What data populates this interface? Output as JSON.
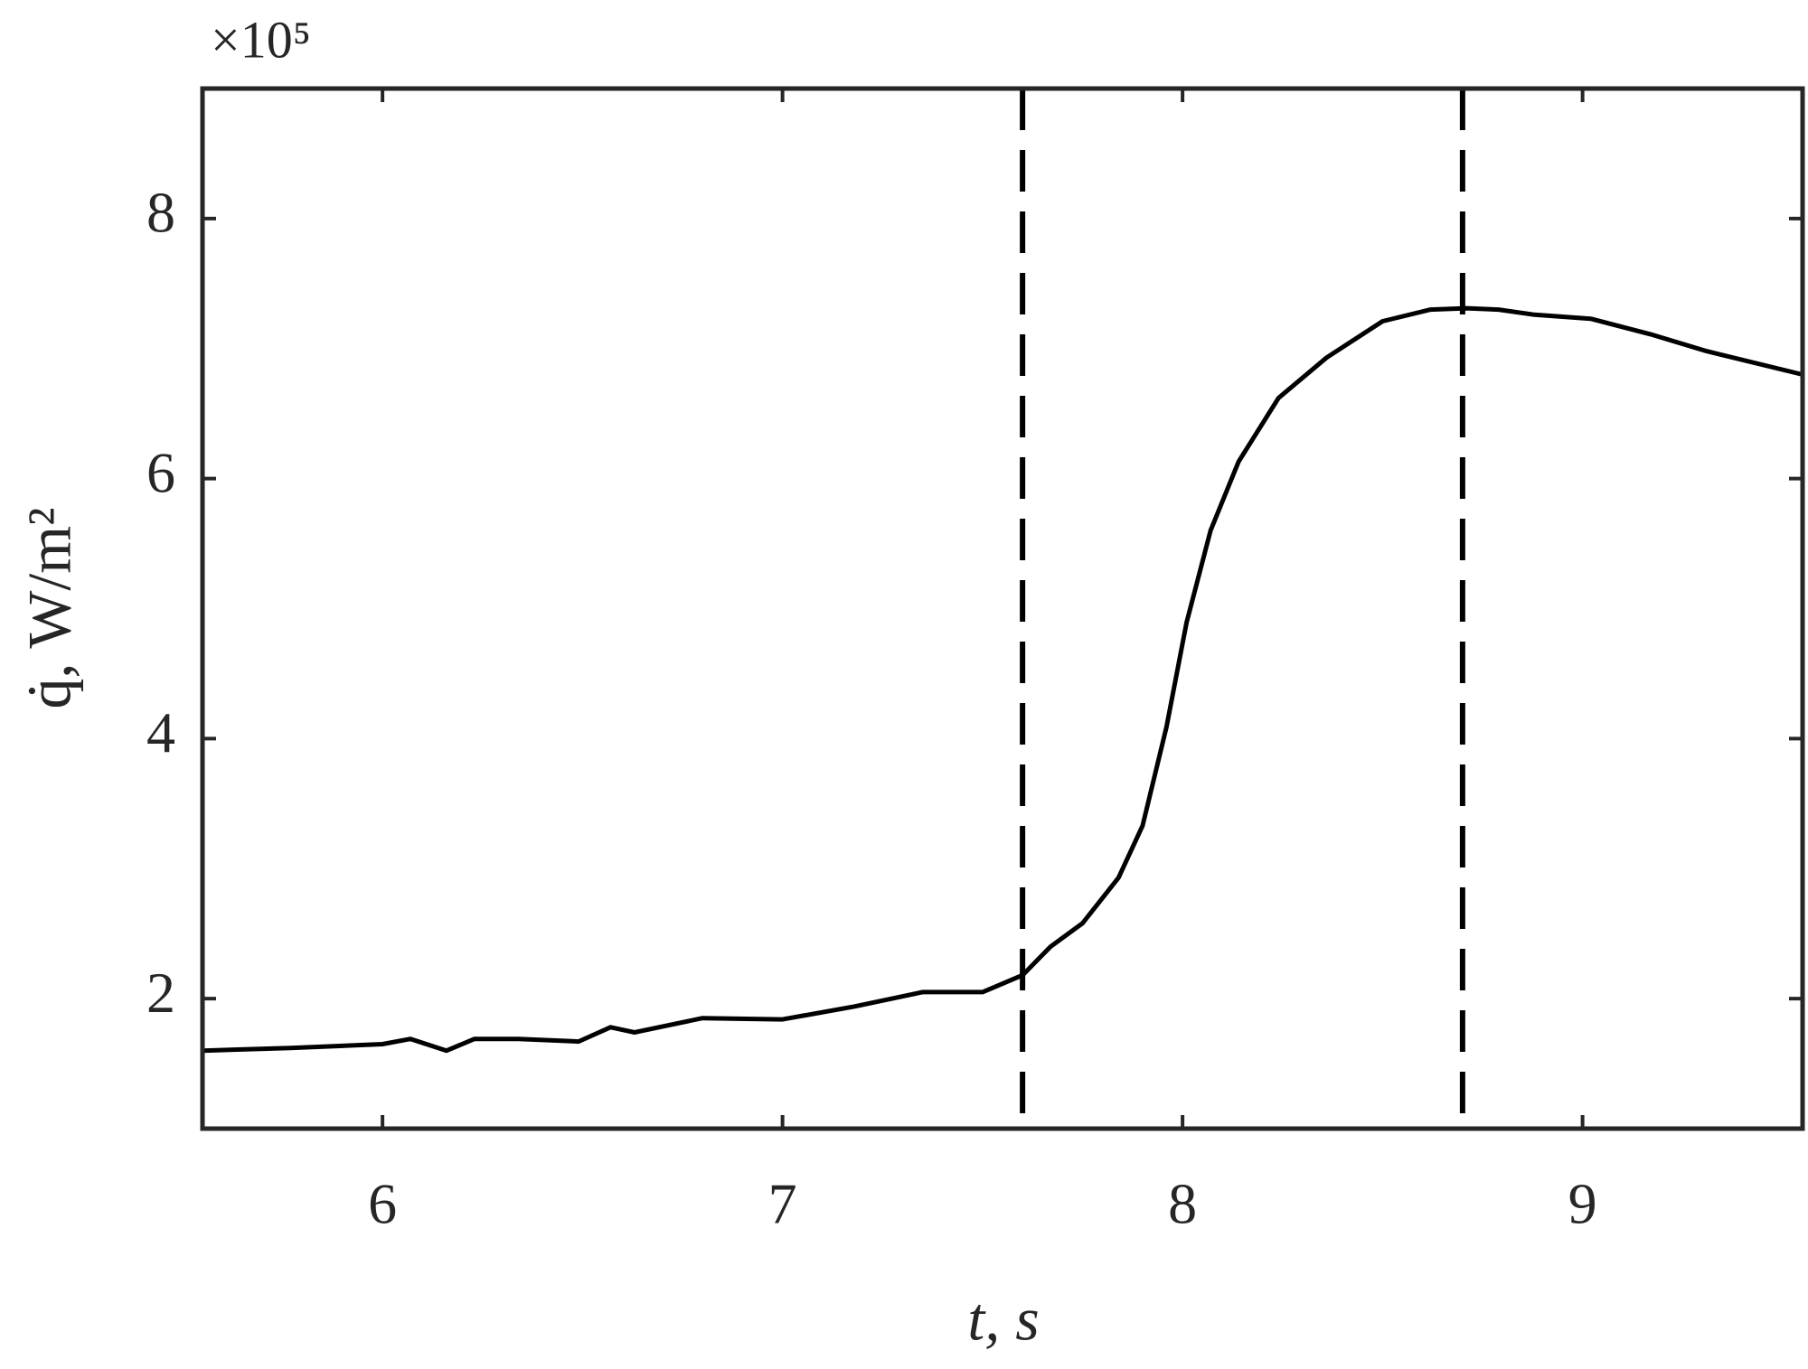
{
  "chart_data": {
    "type": "line",
    "x_label": "t, s",
    "y_label": "q̇, W/m²",
    "y_multiplier": "×10⁵",
    "x": [
      5.55,
      5.77,
      6.0,
      6.07,
      6.16,
      6.23,
      6.34,
      6.49,
      6.57,
      6.63,
      6.8,
      7.0,
      7.18,
      7.35,
      7.5,
      7.6,
      7.67,
      7.75,
      7.84,
      7.9,
      7.96,
      8.01,
      8.07,
      8.14,
      8.24,
      8.36,
      8.5,
      8.62,
      8.71,
      8.79,
      8.88,
      9.02,
      9.17,
      9.31,
      9.55
    ],
    "series": [
      {
        "color": "#000000",
        "values": [
          1.6,
          1.62,
          1.65,
          1.69,
          1.6,
          1.69,
          1.69,
          1.67,
          1.78,
          1.74,
          1.85,
          1.84,
          1.94,
          2.05,
          2.05,
          2.18,
          2.4,
          2.58,
          2.93,
          3.33,
          4.09,
          4.89,
          5.6,
          6.13,
          6.62,
          6.93,
          7.21,
          7.3,
          7.31,
          7.3,
          7.26,
          7.23,
          7.11,
          6.98,
          6.8
        ]
      }
    ],
    "vlines": [
      7.6,
      8.7
    ],
    "xlim": [
      5.55,
      9.55
    ],
    "ylim": [
      1,
      9
    ],
    "xticks": [
      6,
      7,
      8,
      9
    ],
    "yticks": [
      2,
      4,
      6,
      8
    ],
    "grid": false
  }
}
